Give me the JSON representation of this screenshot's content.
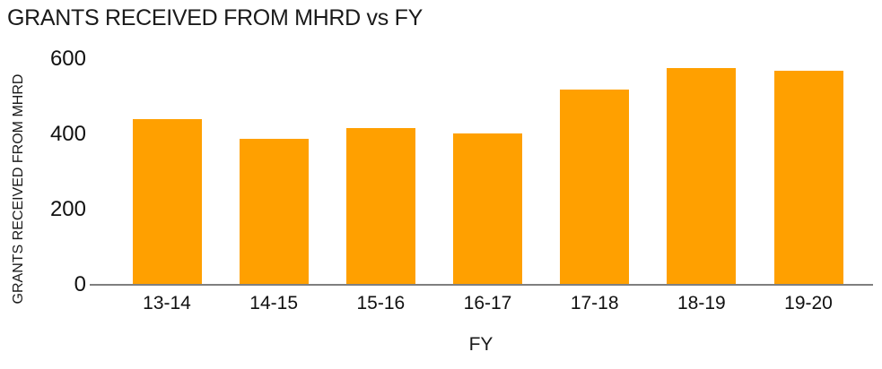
{
  "title": "GRANTS RECEIVED FROM MHRD vs FY",
  "chart_data": {
    "type": "bar",
    "title": "GRANTS RECEIVED FROM MHRD vs FY",
    "categories": [
      "13-14",
      "14-15",
      "15-16",
      "16-17",
      "17-18",
      "18-19",
      "19-20"
    ],
    "values": [
      440,
      389,
      417,
      402,
      519,
      576,
      568
    ],
    "xlabel": "FY",
    "ylabel": "GRANTS RECEIVED FROM MHRD",
    "ylim": [
      0,
      600
    ],
    "yticks": [
      0,
      200,
      400,
      600
    ],
    "grid": false,
    "legend": false,
    "colors": {
      "bar": "#FFA000",
      "axis_line": "#7F7F7F",
      "text": "#1A1A1A"
    }
  }
}
